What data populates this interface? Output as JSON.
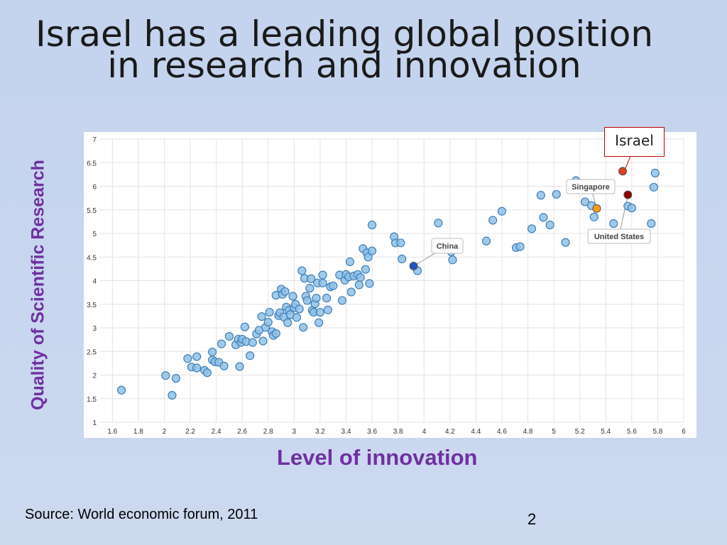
{
  "slide": {
    "title_line1": "Israel has a leading global position",
    "title_line2": "in research and innovation",
    "source": "Source: World economic forum, 2011",
    "page_number": "2"
  },
  "colors": {
    "axis_label": "#7030a0",
    "point_fill": "#8fc0e6",
    "point_stroke": "#3d7fb8",
    "israel": "#d9401e",
    "united_states": "#8b0000",
    "singapore": "#f39c12",
    "china": "#2453c7",
    "callout_border": "#c00000"
  },
  "chart_data": {
    "type": "scatter",
    "xlabel": "Level of innovation",
    "ylabel": "Quality of Scientific Research",
    "xlim": [
      1.5,
      6
    ],
    "ylim": [
      1,
      7
    ],
    "x_ticks": [
      "1.6",
      "1.8",
      "2",
      "2.2",
      "2.4",
      "2.6",
      "2.8",
      "3",
      "3.2",
      "3.4",
      "3.6",
      "3.8",
      "4",
      "4.2",
      "4.4",
      "4.6",
      "4.8",
      "5",
      "5.2",
      "5.4",
      "5.6",
      "5.8",
      "6"
    ],
    "y_ticks": [
      "1",
      "1.5",
      "2",
      "2.5",
      "3",
      "3.5",
      "4",
      "4.5",
      "5",
      "5.5",
      "6",
      "6.5",
      "7"
    ],
    "grid": true,
    "highlights": [
      {
        "label": "Israel",
        "x": 5.53,
        "y": 6.32,
        "color": "#d9401e"
      },
      {
        "label": "United States",
        "x": 5.57,
        "y": 5.82,
        "color": "#8b0000"
      },
      {
        "label": "Singapore",
        "x": 5.33,
        "y": 5.53,
        "color": "#f39c12"
      },
      {
        "label": "China",
        "x": 3.92,
        "y": 4.31,
        "color": "#2453c7"
      }
    ],
    "points": [
      [
        1.67,
        1.68
      ],
      [
        2.01,
        1.99
      ],
      [
        2.06,
        1.57
      ],
      [
        2.09,
        1.93
      ],
      [
        2.18,
        2.35
      ],
      [
        2.21,
        2.17
      ],
      [
        2.25,
        2.39
      ],
      [
        2.25,
        2.15
      ],
      [
        2.31,
        2.1
      ],
      [
        2.33,
        2.05
      ],
      [
        2.37,
        2.49
      ],
      [
        2.37,
        2.32
      ],
      [
        2.39,
        2.28
      ],
      [
        2.42,
        2.27
      ],
      [
        2.44,
        2.66
      ],
      [
        2.46,
        2.19
      ],
      [
        2.5,
        2.82
      ],
      [
        2.55,
        2.64
      ],
      [
        2.57,
        2.76
      ],
      [
        2.58,
        2.18
      ],
      [
        2.59,
        2.69
      ],
      [
        2.6,
        2.76
      ],
      [
        2.62,
        3.02
      ],
      [
        2.63,
        2.71
      ],
      [
        2.66,
        2.41
      ],
      [
        2.68,
        2.69
      ],
      [
        2.71,
        2.87
      ],
      [
        2.73,
        2.95
      ],
      [
        2.75,
        3.24
      ],
      [
        2.76,
        2.72
      ],
      [
        2.78,
        3.01
      ],
      [
        2.8,
        3.12
      ],
      [
        2.81,
        3.33
      ],
      [
        2.83,
        2.92
      ],
      [
        2.84,
        2.84
      ],
      [
        2.86,
        2.88
      ],
      [
        2.86,
        3.69
      ],
      [
        2.88,
        3.26
      ],
      [
        2.89,
        3.32
      ],
      [
        2.9,
        3.82
      ],
      [
        2.91,
        3.71
      ],
      [
        2.92,
        3.23
      ],
      [
        2.93,
        3.77
      ],
      [
        2.94,
        3.44
      ],
      [
        2.95,
        3.11
      ],
      [
        2.96,
        3.37
      ],
      [
        2.97,
        3.28
      ],
      [
        2.99,
        3.67
      ],
      [
        3.0,
        3.43
      ],
      [
        3.01,
        3.5
      ],
      [
        3.02,
        3.22
      ],
      [
        3.04,
        3.4
      ],
      [
        3.06,
        4.21
      ],
      [
        3.07,
        3.01
      ],
      [
        3.08,
        4.05
      ],
      [
        3.09,
        3.67
      ],
      [
        3.1,
        3.58
      ],
      [
        3.12,
        3.84
      ],
      [
        3.13,
        4.04
      ],
      [
        3.14,
        3.37
      ],
      [
        3.15,
        3.33
      ],
      [
        3.16,
        3.51
      ],
      [
        3.17,
        3.63
      ],
      [
        3.18,
        3.95
      ],
      [
        3.19,
        3.11
      ],
      [
        3.2,
        3.33
      ],
      [
        3.22,
        3.95
      ],
      [
        3.22,
        4.12
      ],
      [
        3.25,
        3.63
      ],
      [
        3.26,
        3.38
      ],
      [
        3.28,
        3.87
      ],
      [
        3.3,
        3.89
      ],
      [
        3.35,
        4.12
      ],
      [
        3.37,
        3.58
      ],
      [
        3.39,
        4.01
      ],
      [
        3.4,
        4.13
      ],
      [
        3.42,
        4.08
      ],
      [
        3.43,
        4.4
      ],
      [
        3.44,
        3.76
      ],
      [
        3.46,
        4.1
      ],
      [
        3.49,
        4.13
      ],
      [
        3.5,
        3.91
      ],
      [
        3.51,
        4.07
      ],
      [
        3.53,
        4.68
      ],
      [
        3.55,
        4.24
      ],
      [
        3.56,
        4.59
      ],
      [
        3.57,
        4.5
      ],
      [
        3.58,
        3.94
      ],
      [
        3.6,
        4.63
      ],
      [
        3.6,
        5.18
      ],
      [
        3.77,
        4.93
      ],
      [
        3.78,
        4.8
      ],
      [
        3.82,
        4.8
      ],
      [
        3.83,
        4.46
      ],
      [
        3.95,
        4.21
      ],
      [
        4.11,
        5.22
      ],
      [
        4.21,
        4.61
      ],
      [
        4.22,
        4.44
      ],
      [
        4.48,
        4.84
      ],
      [
        4.53,
        5.28
      ],
      [
        4.6,
        5.47
      ],
      [
        4.71,
        4.7
      ],
      [
        4.74,
        4.72
      ],
      [
        4.83,
        5.1
      ],
      [
        4.9,
        5.81
      ],
      [
        4.92,
        5.34
      ],
      [
        4.97,
        5.18
      ],
      [
        5.02,
        5.83
      ],
      [
        5.09,
        4.81
      ],
      [
        5.17,
        6.12
      ],
      [
        5.24,
        5.67
      ],
      [
        5.29,
        5.59
      ],
      [
        5.31,
        5.35
      ],
      [
        5.46,
        5.21
      ],
      [
        5.57,
        5.58
      ],
      [
        5.6,
        5.54
      ],
      [
        5.75,
        5.21
      ],
      [
        5.77,
        5.98
      ],
      [
        5.78,
        6.28
      ]
    ]
  },
  "annotations": {
    "israel_callout": "Israel",
    "singapore": "Singapore",
    "united_states": "United States",
    "china": "China"
  }
}
